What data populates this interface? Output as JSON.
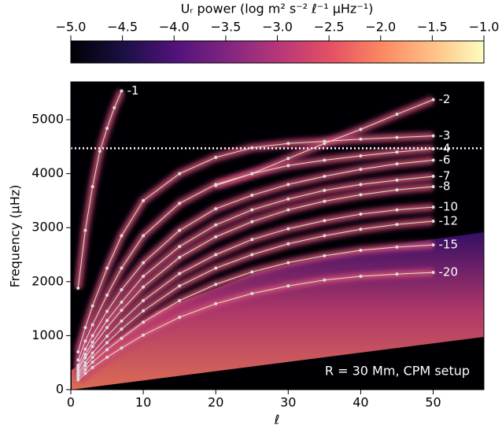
{
  "chart_data": {
    "type": "line",
    "colorbar": {
      "label": "Uᵣ power (log m² s⁻² ℓ⁻¹ μHz⁻¹)",
      "clim": [
        -5,
        -1
      ],
      "ticks": [
        {
          "value": -5,
          "label": "−5.0"
        },
        {
          "value": -4.5,
          "label": "−4.5"
        },
        {
          "value": -4,
          "label": "−4.0"
        },
        {
          "value": -3.5,
          "label": "−3.5"
        },
        {
          "value": -3,
          "label": "−3.0"
        },
        {
          "value": -2.5,
          "label": "−2.5"
        },
        {
          "value": -2,
          "label": "−2.0"
        },
        {
          "value": -1.5,
          "label": "−1.5"
        },
        {
          "value": -1,
          "label": "−1.0"
        }
      ]
    },
    "x_label": "ℓ",
    "y_label": "Frequency (μHz)",
    "annotation": "R = 30 Mm, CPM setup",
    "xlim": [
      0,
      57
    ],
    "ylim": [
      0,
      5700
    ],
    "xticks": [
      0,
      10,
      20,
      30,
      40,
      50
    ],
    "yticks": [
      0,
      1000,
      2000,
      3000,
      4000,
      5000
    ],
    "hline": 4470,
    "color": "#dddddd",
    "series": [
      {
        "name": "-1",
        "x": [
          1,
          2,
          3,
          4,
          5,
          6,
          7
        ],
        "values": [
          1880,
          2950,
          3760,
          4415,
          4840,
          5220,
          5530
        ]
      },
      {
        "name": "-2",
        "x": [
          20,
          25,
          30,
          35,
          40,
          45,
          50
        ],
        "values": [
          3780,
          4000,
          4280,
          4560,
          4820,
          5100,
          5370
        ]
      },
      {
        "name": "-3",
        "x": [
          1,
          2,
          3,
          5,
          7,
          10,
          15,
          20,
          25,
          30,
          35,
          40,
          45,
          50
        ],
        "values": [
          700,
          1150,
          1550,
          2250,
          2850,
          3500,
          4000,
          4300,
          4480,
          4560,
          4600,
          4640,
          4670,
          4700
        ]
      },
      {
        "name": "-4",
        "x": [
          1,
          2,
          3,
          5,
          7,
          10,
          15,
          20,
          25,
          30,
          35,
          40,
          45,
          50
        ],
        "values": [
          550,
          900,
          1200,
          1750,
          2250,
          2850,
          3450,
          3800,
          4000,
          4150,
          4250,
          4330,
          4400,
          4460
        ]
      },
      {
        "name": "-6",
        "x": [
          1,
          2,
          3,
          5,
          7,
          10,
          15,
          20,
          25,
          30,
          35,
          40,
          45,
          50
        ],
        "values": [
          450,
          750,
          1000,
          1450,
          1850,
          2350,
          2950,
          3350,
          3600,
          3800,
          3950,
          4080,
          4180,
          4250
        ]
      },
      {
        "name": "-7",
        "x": [
          1,
          2,
          3,
          5,
          7,
          10,
          15,
          20,
          25,
          30,
          35,
          40,
          45,
          50
        ],
        "values": [
          400,
          650,
          880,
          1280,
          1620,
          2100,
          2650,
          3050,
          3330,
          3530,
          3690,
          3800,
          3880,
          3950
        ]
      },
      {
        "name": "-8",
        "x": [
          1,
          2,
          3,
          5,
          7,
          10,
          15,
          20,
          25,
          30,
          35,
          40,
          45,
          50
        ],
        "values": [
          360,
          590,
          800,
          1150,
          1470,
          1900,
          2450,
          2830,
          3110,
          3330,
          3490,
          3610,
          3700,
          3760
        ]
      },
      {
        "name": "-10",
        "x": [
          1,
          2,
          3,
          5,
          7,
          10,
          15,
          20,
          25,
          30,
          35,
          40,
          45,
          50
        ],
        "values": [
          310,
          500,
          680,
          990,
          1270,
          1650,
          2150,
          2500,
          2780,
          2980,
          3130,
          3250,
          3330,
          3380
        ]
      },
      {
        "name": "-12",
        "x": [
          1,
          2,
          3,
          5,
          7,
          10,
          15,
          20,
          25,
          30,
          35,
          40,
          45,
          50
        ],
        "values": [
          270,
          440,
          600,
          870,
          1120,
          1460,
          1920,
          2250,
          2500,
          2700,
          2850,
          2970,
          3060,
          3120
        ]
      },
      {
        "name": "-15",
        "x": [
          1,
          2,
          3,
          5,
          7,
          10,
          15,
          20,
          25,
          30,
          35,
          40,
          45,
          50
        ],
        "values": [
          230,
          370,
          510,
          740,
          950,
          1250,
          1650,
          1950,
          2180,
          2350,
          2480,
          2580,
          2640,
          2680
        ]
      },
      {
        "name": "-20",
        "x": [
          1,
          2,
          3,
          5,
          7,
          10,
          15,
          20,
          25,
          30,
          35,
          40,
          45,
          50
        ],
        "values": [
          180,
          300,
          410,
          600,
          770,
          1010,
          1340,
          1590,
          1780,
          1920,
          2030,
          2100,
          2140,
          2170
        ]
      }
    ]
  }
}
